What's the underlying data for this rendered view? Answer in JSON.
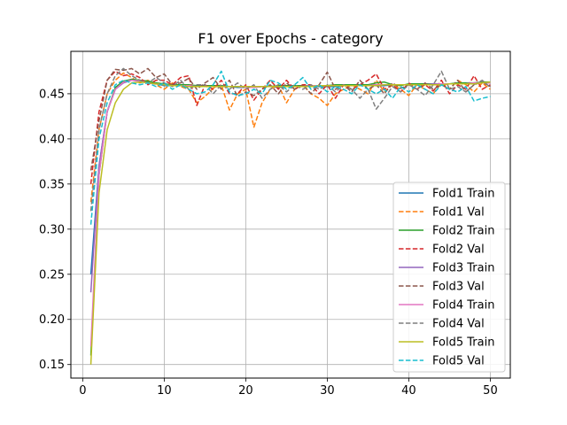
{
  "chart_data": {
    "type": "line",
    "title": "F1 over Epochs - category",
    "xlabel": "",
    "ylabel": "",
    "xlim": [
      -1.45,
      52.45
    ],
    "ylim": [
      0.135,
      0.497
    ],
    "xticks": [
      0,
      10,
      20,
      30,
      40,
      50
    ],
    "yticks": [
      0.15,
      0.2,
      0.25,
      0.3,
      0.35,
      0.4,
      0.45
    ],
    "ytick_labels": [
      "0.15",
      "0.20",
      "0.25",
      "0.30",
      "0.35",
      "0.40",
      "0.45"
    ],
    "grid": true,
    "legend_position": "lower-right",
    "x": [
      1,
      2,
      3,
      4,
      5,
      6,
      7,
      8,
      9,
      10,
      11,
      12,
      13,
      14,
      15,
      16,
      17,
      18,
      19,
      20,
      21,
      22,
      23,
      24,
      25,
      26,
      27,
      28,
      29,
      30,
      31,
      32,
      33,
      34,
      35,
      36,
      37,
      38,
      39,
      40,
      41,
      42,
      43,
      44,
      45,
      46,
      47,
      48,
      49,
      50
    ],
    "series": [
      {
        "name": "Fold1 Train",
        "color": "#1f77b4",
        "dash": false,
        "values": [
          0.25,
          0.37,
          0.43,
          0.455,
          0.463,
          0.466,
          0.465,
          0.463,
          0.461,
          0.459,
          0.459,
          0.459,
          0.458,
          0.458,
          0.459,
          0.458,
          0.458,
          0.458,
          0.457,
          0.457,
          0.457,
          0.458,
          0.458,
          0.457,
          0.458,
          0.458,
          0.458,
          0.459,
          0.458,
          0.458,
          0.458,
          0.459,
          0.459,
          0.459,
          0.459,
          0.459,
          0.459,
          0.46,
          0.46,
          0.46,
          0.46,
          0.46,
          0.46,
          0.461,
          0.461,
          0.461,
          0.461,
          0.462,
          0.462,
          0.462
        ]
      },
      {
        "name": "Fold1 Val",
        "color": "#ff7f0e",
        "dash": true,
        "values": [
          0.33,
          0.41,
          0.45,
          0.465,
          0.473,
          0.468,
          0.462,
          0.465,
          0.46,
          0.455,
          0.462,
          0.458,
          0.455,
          0.44,
          0.447,
          0.456,
          0.46,
          0.432,
          0.45,
          0.455,
          0.413,
          0.44,
          0.455,
          0.46,
          0.44,
          0.455,
          0.46,
          0.45,
          0.445,
          0.437,
          0.45,
          0.455,
          0.46,
          0.455,
          0.45,
          0.465,
          0.452,
          0.46,
          0.455,
          0.448,
          0.46,
          0.455,
          0.45,
          0.462,
          0.455,
          0.465,
          0.46,
          0.452,
          0.462,
          0.455
        ]
      },
      {
        "name": "Fold2 Train",
        "color": "#2ca02c",
        "dash": false,
        "values": [
          0.16,
          0.36,
          0.43,
          0.457,
          0.464,
          0.466,
          0.465,
          0.464,
          0.462,
          0.461,
          0.46,
          0.46,
          0.46,
          0.459,
          0.459,
          0.459,
          0.459,
          0.458,
          0.458,
          0.458,
          0.458,
          0.458,
          0.458,
          0.459,
          0.459,
          0.459,
          0.459,
          0.459,
          0.459,
          0.459,
          0.46,
          0.46,
          0.46,
          0.46,
          0.46,
          0.462,
          0.463,
          0.46,
          0.459,
          0.461,
          0.461,
          0.461,
          0.461,
          0.461,
          0.461,
          0.462,
          0.462,
          0.462,
          0.463,
          0.463
        ]
      },
      {
        "name": "Fold2 Val",
        "color": "#d62728",
        "dash": true,
        "values": [
          0.35,
          0.43,
          0.465,
          0.475,
          0.47,
          0.472,
          0.468,
          0.46,
          0.465,
          0.465,
          0.46,
          0.468,
          0.47,
          0.437,
          0.46,
          0.455,
          0.465,
          0.45,
          0.45,
          0.46,
          0.443,
          0.455,
          0.465,
          0.455,
          0.465,
          0.455,
          0.46,
          0.46,
          0.45,
          0.46,
          0.445,
          0.46,
          0.455,
          0.46,
          0.465,
          0.472,
          0.455,
          0.46,
          0.452,
          0.462,
          0.455,
          0.46,
          0.453,
          0.465,
          0.45,
          0.46,
          0.455,
          0.47,
          0.455,
          0.46
        ]
      },
      {
        "name": "Fold3 Train",
        "color": "#9467bd",
        "dash": false,
        "values": [
          0.23,
          0.37,
          0.43,
          0.455,
          0.462,
          0.465,
          0.464,
          0.462,
          0.461,
          0.46,
          0.459,
          0.459,
          0.459,
          0.458,
          0.458,
          0.458,
          0.458,
          0.458,
          0.458,
          0.458,
          0.457,
          0.458,
          0.458,
          0.458,
          0.458,
          0.458,
          0.458,
          0.459,
          0.459,
          0.459,
          0.459,
          0.459,
          0.459,
          0.459,
          0.459,
          0.46,
          0.46,
          0.46,
          0.46,
          0.46,
          0.46,
          0.46,
          0.461,
          0.461,
          0.461,
          0.461,
          0.461,
          0.462,
          0.462,
          0.462
        ]
      },
      {
        "name": "Fold3 Val",
        "color": "#8c564b",
        "dash": true,
        "values": [
          0.365,
          0.42,
          0.465,
          0.477,
          0.476,
          0.478,
          0.472,
          0.478,
          0.468,
          0.472,
          0.46,
          0.462,
          0.467,
          0.455,
          0.462,
          0.468,
          0.455,
          0.465,
          0.447,
          0.452,
          0.448,
          0.455,
          0.46,
          0.45,
          0.462,
          0.455,
          0.46,
          0.45,
          0.46,
          0.474,
          0.455,
          0.46,
          0.452,
          0.465,
          0.455,
          0.46,
          0.45,
          0.462,
          0.456,
          0.46,
          0.455,
          0.462,
          0.455,
          0.46,
          0.455,
          0.465,
          0.452,
          0.46,
          0.463,
          0.458
        ]
      },
      {
        "name": "Fold4 Train",
        "color": "#e377c2",
        "dash": false,
        "values": [
          0.17,
          0.36,
          0.43,
          0.455,
          0.463,
          0.465,
          0.464,
          0.462,
          0.461,
          0.46,
          0.459,
          0.459,
          0.459,
          0.458,
          0.458,
          0.458,
          0.458,
          0.458,
          0.458,
          0.457,
          0.457,
          0.458,
          0.458,
          0.458,
          0.458,
          0.458,
          0.458,
          0.459,
          0.459,
          0.459,
          0.459,
          0.459,
          0.459,
          0.459,
          0.459,
          0.46,
          0.46,
          0.46,
          0.46,
          0.46,
          0.46,
          0.46,
          0.46,
          0.461,
          0.461,
          0.461,
          0.461,
          0.462,
          0.462,
          0.462
        ]
      },
      {
        "name": "Fold4 Val",
        "color": "#7f7f7f",
        "dash": true,
        "values": [
          0.32,
          0.41,
          0.45,
          0.47,
          0.478,
          0.47,
          0.465,
          0.462,
          0.468,
          0.462,
          0.458,
          0.465,
          0.455,
          0.46,
          0.46,
          0.45,
          0.46,
          0.455,
          0.462,
          0.455,
          0.46,
          0.445,
          0.455,
          0.46,
          0.452,
          0.46,
          0.455,
          0.46,
          0.455,
          0.46,
          0.452,
          0.46,
          0.455,
          0.445,
          0.455,
          0.433,
          0.445,
          0.458,
          0.452,
          0.46,
          0.455,
          0.448,
          0.46,
          0.475,
          0.455,
          0.458,
          0.452,
          0.46,
          0.465,
          0.457
        ]
      },
      {
        "name": "Fold5 Train",
        "color": "#bcbd22",
        "dash": false,
        "values": [
          0.15,
          0.34,
          0.41,
          0.44,
          0.455,
          0.462,
          0.463,
          0.462,
          0.461,
          0.46,
          0.459,
          0.459,
          0.458,
          0.458,
          0.458,
          0.458,
          0.458,
          0.458,
          0.458,
          0.458,
          0.458,
          0.458,
          0.458,
          0.458,
          0.458,
          0.458,
          0.458,
          0.458,
          0.459,
          0.459,
          0.459,
          0.459,
          0.459,
          0.459,
          0.459,
          0.459,
          0.46,
          0.46,
          0.46,
          0.46,
          0.46,
          0.46,
          0.46,
          0.46,
          0.461,
          0.461,
          0.461,
          0.461,
          0.462,
          0.463
        ]
      },
      {
        "name": "Fold5 Val",
        "color": "#17becf",
        "dash": true,
        "values": [
          0.305,
          0.4,
          0.44,
          0.46,
          0.465,
          0.462,
          0.46,
          0.462,
          0.458,
          0.462,
          0.455,
          0.46,
          0.455,
          0.45,
          0.452,
          0.46,
          0.475,
          0.452,
          0.448,
          0.45,
          0.455,
          0.45,
          0.465,
          0.462,
          0.455,
          0.46,
          0.468,
          0.455,
          0.46,
          0.452,
          0.458,
          0.455,
          0.45,
          0.46,
          0.455,
          0.45,
          0.455,
          0.445,
          0.458,
          0.452,
          0.46,
          0.455,
          0.45,
          0.46,
          0.455,
          0.452,
          0.458,
          0.442,
          0.445,
          0.447
        ]
      }
    ]
  }
}
